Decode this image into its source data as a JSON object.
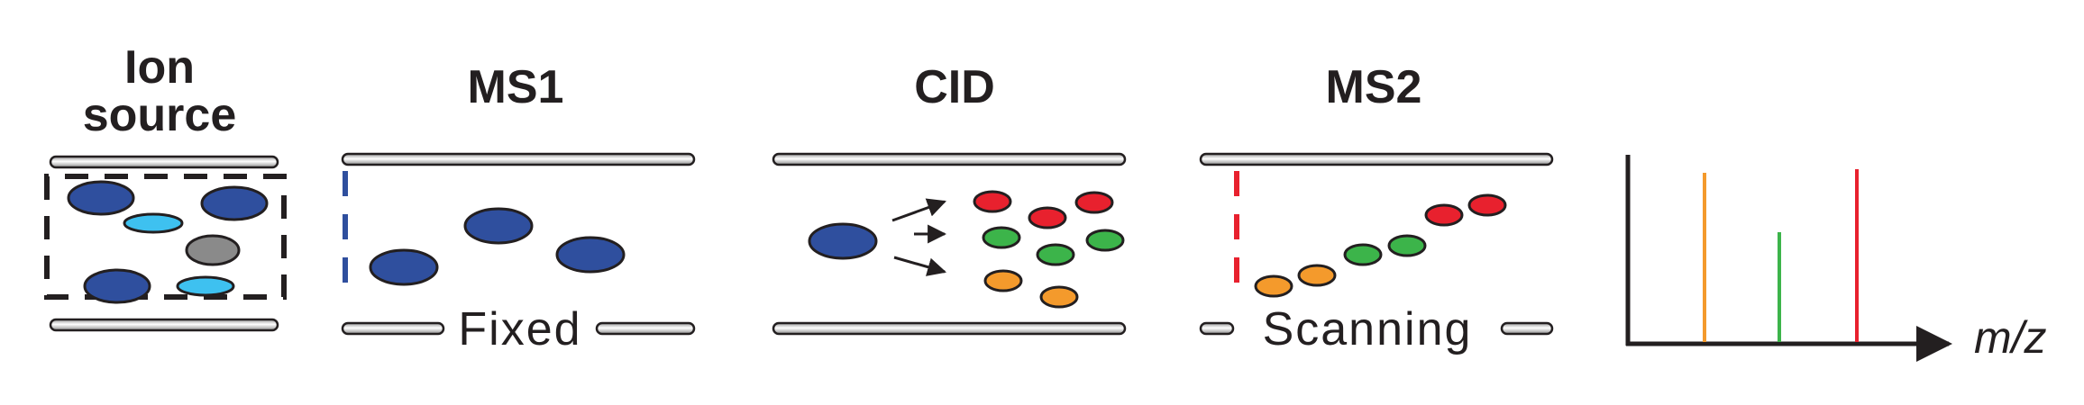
{
  "stages": {
    "ion_source": {
      "title_line1": "Ion",
      "title_line2": "source"
    },
    "ms1": {
      "title": "MS1",
      "mode": "Fixed"
    },
    "cid": {
      "title": "CID"
    },
    "ms2": {
      "title": "MS2",
      "mode": "Scanning"
    }
  },
  "spectrum": {
    "x_axis_label": "m/z"
  },
  "colors": {
    "precursor_ion": "#2f4f9e",
    "light_blue_ion": "#3ec1f0",
    "gray_ion": "#8a8a8a",
    "red_ion": "#e8212e",
    "green_ion": "#3cb44a",
    "orange_ion": "#f49a2c",
    "ms1_gate": "#2f4f9e",
    "ms2_gate": "#e8212e"
  }
}
